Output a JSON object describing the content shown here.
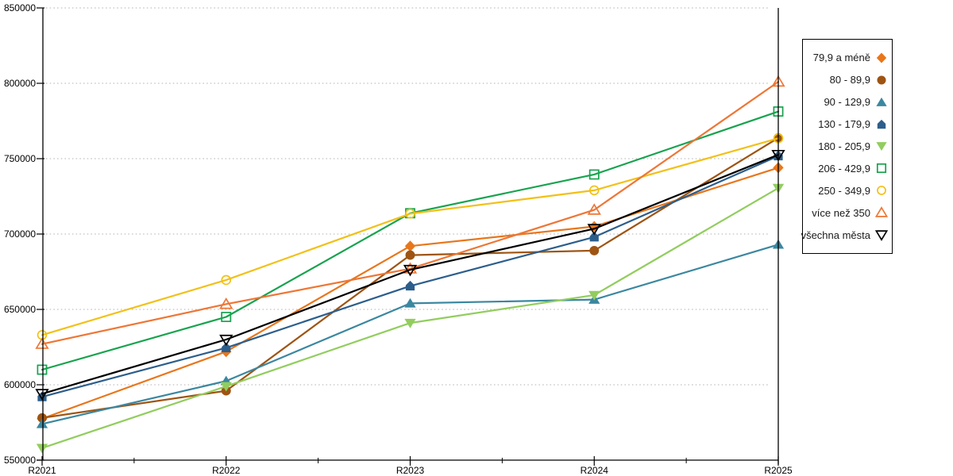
{
  "chart_data": {
    "type": "line",
    "categories": [
      "R2021",
      "R2022",
      "R2023",
      "R2024",
      "R2025"
    ],
    "ylim": [
      550000,
      850000
    ],
    "ytick_step": 50000,
    "ytick_labels": [
      "550000",
      "600000",
      "650000",
      "700000",
      "750000",
      "800000",
      "850000"
    ],
    "grid": "horizontal-dotted",
    "grid_color": "#b0b0b0",
    "axis_color": "#000000",
    "legend_position": "right",
    "series": [
      {
        "name": "79,9 a méně",
        "color": "#E8761B",
        "marker": "diamond",
        "marker_filled": true,
        "values": [
          577500,
          622000,
          692000,
          705000,
          744000
        ]
      },
      {
        "name": "80 - 89,9",
        "color": "#9E5412",
        "marker": "circle",
        "marker_filled": true,
        "values": [
          578000,
          596000,
          686000,
          689000,
          763800
        ]
      },
      {
        "name": "90 - 129,9",
        "color": "#3B87A0",
        "marker": "triangle-up",
        "marker_filled": true,
        "values": [
          574000,
          602500,
          654000,
          656500,
          693000
        ]
      },
      {
        "name": "130 - 179,9",
        "color": "#2C5E8C",
        "marker": "pentagon",
        "marker_filled": true,
        "values": [
          592000,
          624500,
          665500,
          698000,
          751800
        ]
      },
      {
        "name": "180 - 205,9",
        "color": "#92CD5E",
        "marker": "triangle-down",
        "marker_filled": true,
        "values": [
          558000,
          599000,
          641000,
          659500,
          730500
        ]
      },
      {
        "name": "206 - 429,9",
        "color": "#17A34E",
        "marker": "square",
        "marker_filled": false,
        "values": [
          610000,
          645000,
          713800,
          739500,
          781300
        ]
      },
      {
        "name": "250 - 349,9",
        "color": "#F2C018",
        "marker": "circle",
        "marker_filled": false,
        "values": [
          633000,
          669500,
          713500,
          729000,
          763500
        ]
      },
      {
        "name": "více než 350",
        "color": "#EE7635",
        "marker": "triangle-up",
        "marker_filled": false,
        "values": [
          627000,
          653500,
          677000,
          716000,
          801000
        ]
      },
      {
        "name": "všechna města",
        "color": "#000000",
        "marker": "triangle-down",
        "marker_filled": false,
        "values": [
          594000,
          630000,
          676300,
          703500,
          752600
        ]
      }
    ]
  }
}
